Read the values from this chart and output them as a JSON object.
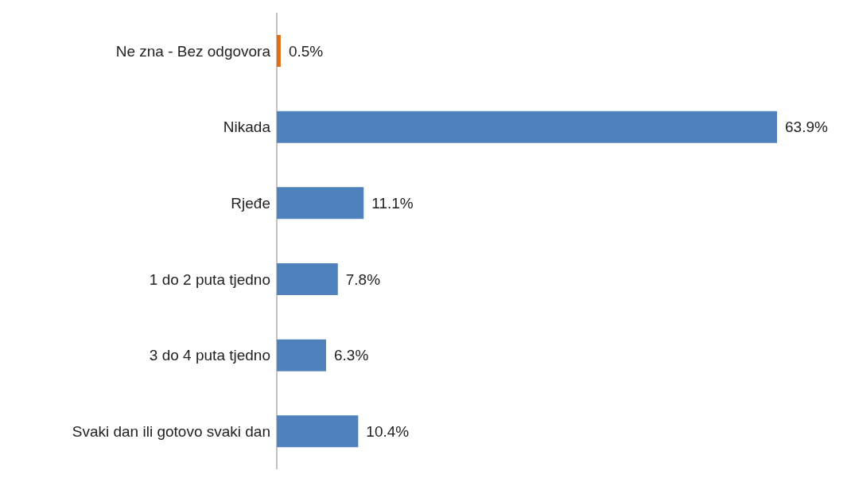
{
  "chart_data": {
    "type": "bar",
    "orientation": "horizontal",
    "categories": [
      "Ne zna - Bez odgovora",
      "Nikada",
      "Rjeđe",
      "1 do 2 puta tjedno",
      "3 do 4 puta tjedno",
      "Svaki dan ili gotovo svaki dan"
    ],
    "values": [
      0.5,
      63.9,
      11.1,
      7.8,
      6.3,
      10.4
    ],
    "colors": [
      "#e46c0a",
      "#4f81bd",
      "#4f81bd",
      "#4f81bd",
      "#4f81bd",
      "#4f81bd"
    ],
    "value_labels": [
      "0.5%",
      "63.9%",
      "11.1%",
      "7.8%",
      "6.3%",
      "10.4%"
    ]
  }
}
